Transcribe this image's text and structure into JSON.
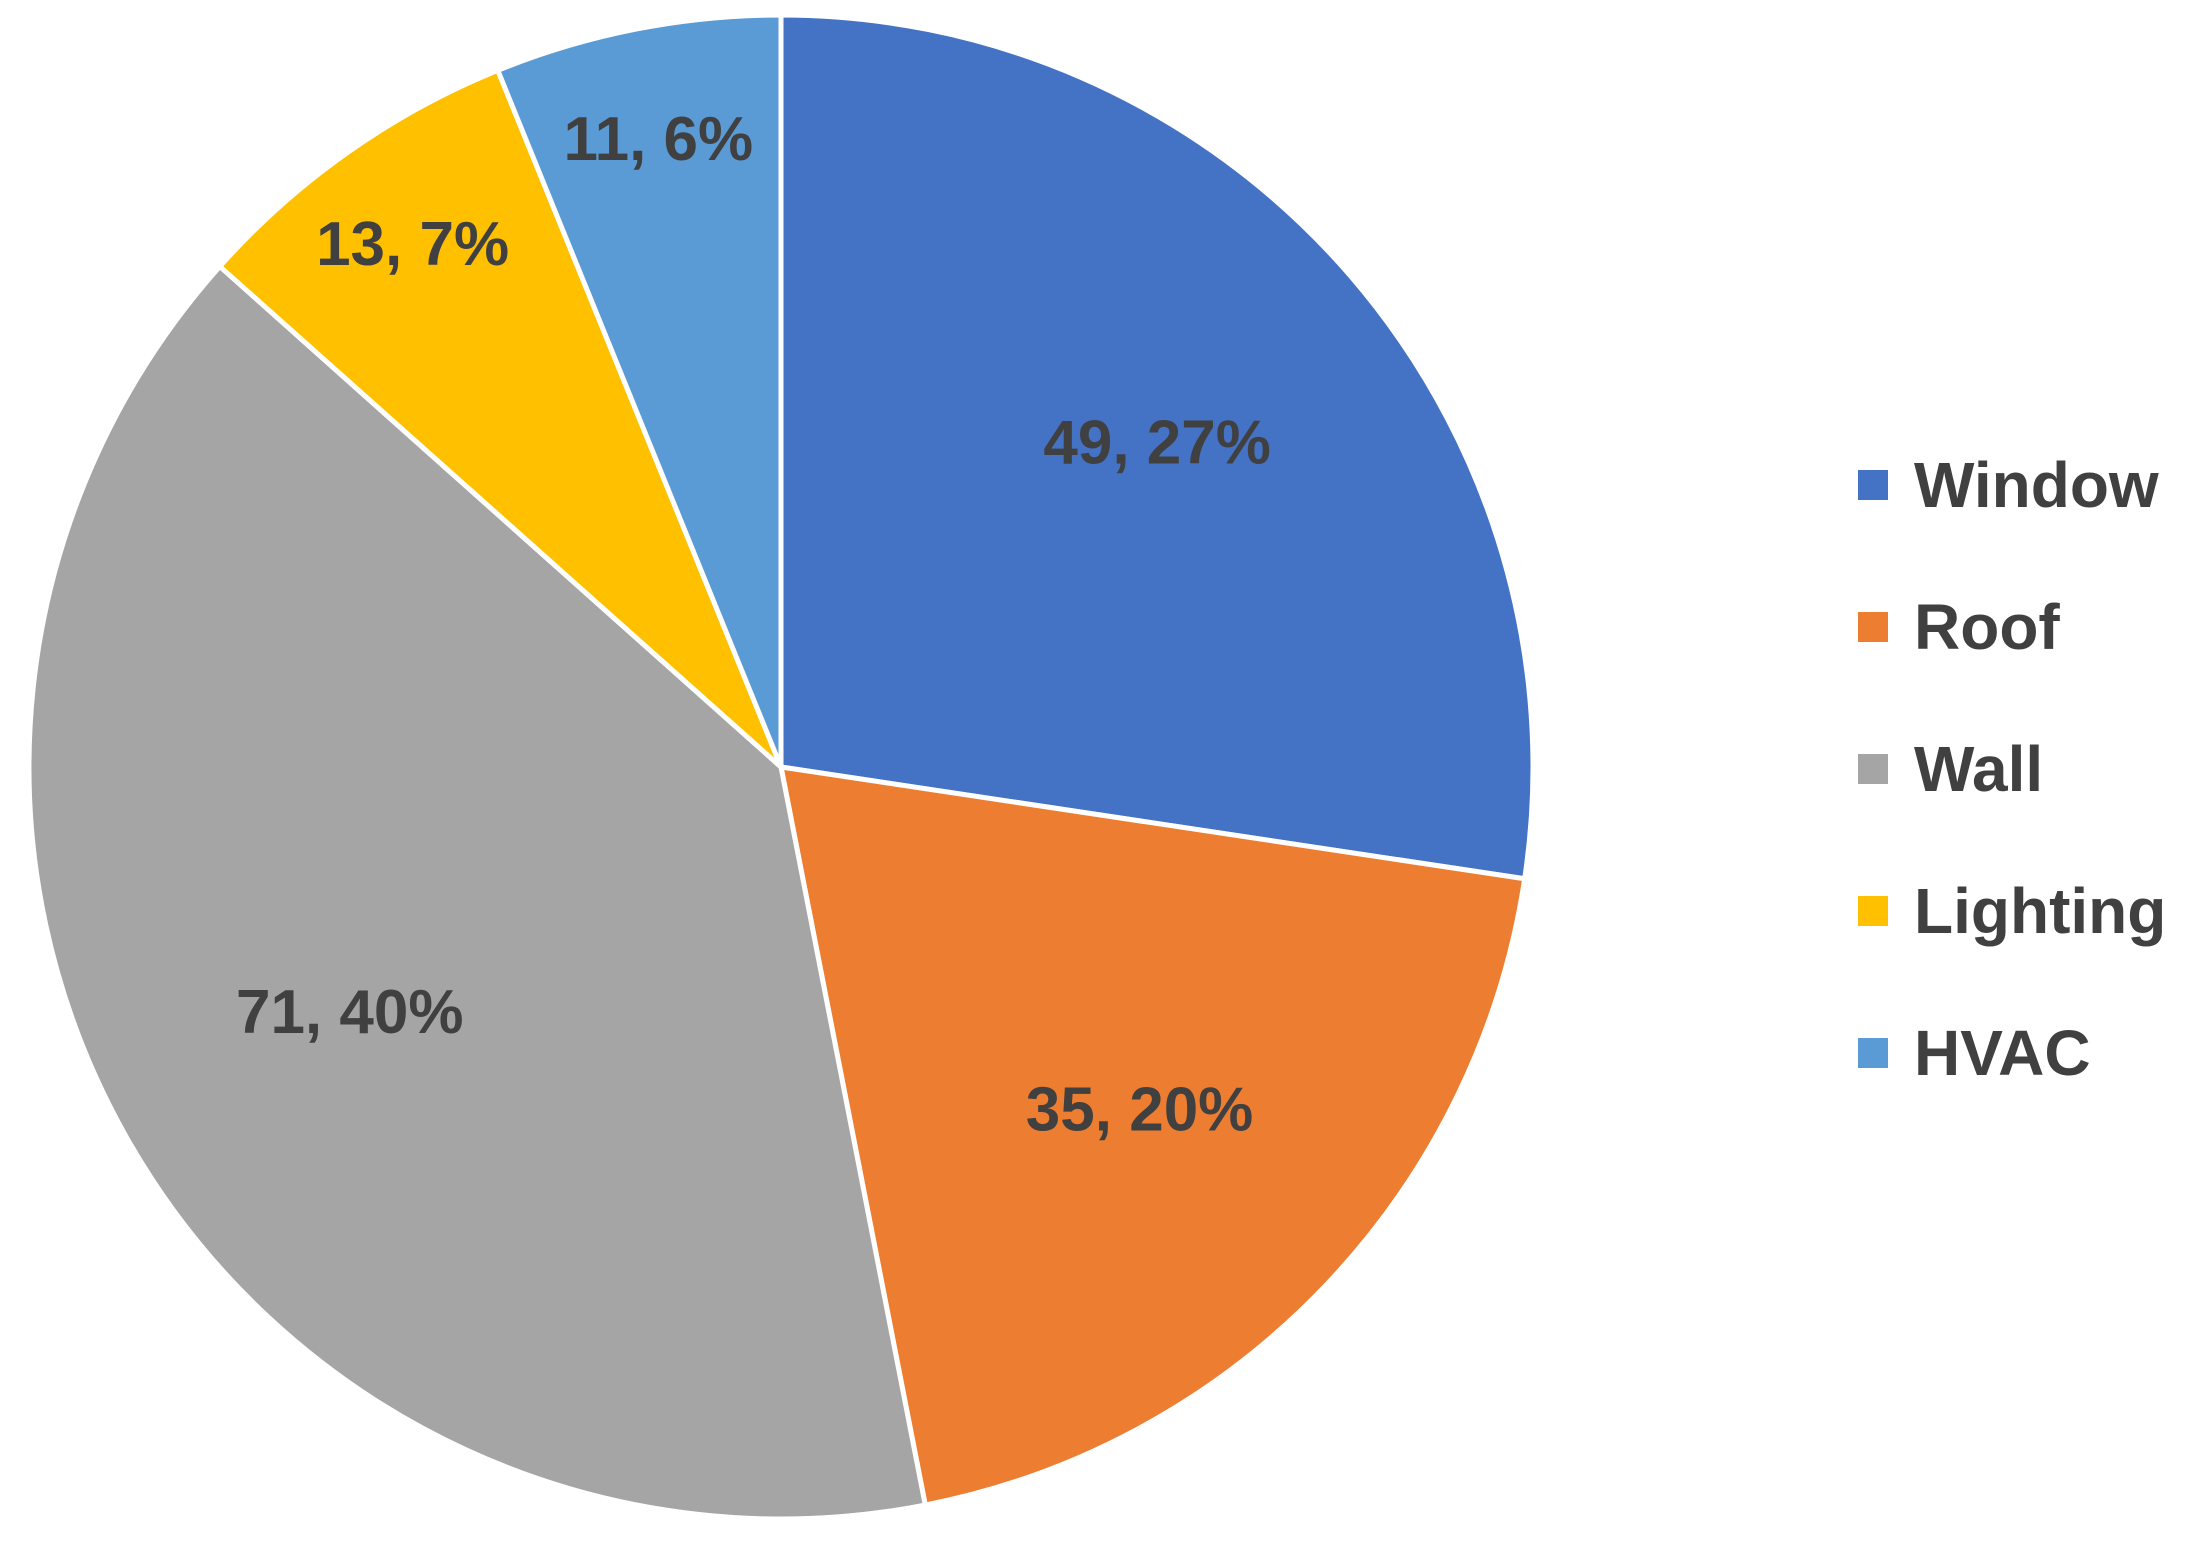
{
  "chart_data": {
    "type": "pie",
    "title": "",
    "categories": [
      "Window",
      "Roof",
      "Wall",
      "Lighting",
      "HVAC"
    ],
    "values": [
      49,
      35,
      71,
      13,
      11
    ],
    "percent_labels": [
      "27%",
      "20%",
      "40%",
      "7%",
      "6%"
    ],
    "data_labels": [
      "49, 27%",
      "35, 20%",
      "71, 40%",
      "13, 7%",
      "11, 6%"
    ],
    "colors": [
      "#4472C4",
      "#ED7D31",
      "#A5A5A5",
      "#FFC000",
      "#5B9BD5"
    ],
    "label_color": "#404040",
    "start_angle": "12 o'clock",
    "direction": "clockwise",
    "legend": {
      "position": "right",
      "entries": [
        "Window",
        "Roof",
        "Wall",
        "Lighting",
        "HVAC"
      ]
    }
  }
}
